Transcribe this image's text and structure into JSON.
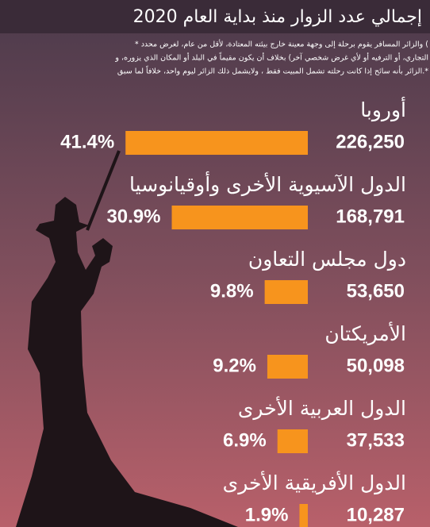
{
  "chart_data": {
    "type": "bar",
    "title": "إجمالي عدد الزوار منذ بداية العام 2020",
    "note_lines": [
      "* والزائر المسافر يقوم برحلة إلى وجهة معينة خارج بيئته المعتادة، لأقل من عام، لغرض محدد (",
      "التجاري، أو الترفيه أو لأي غرض شخصي آخر) بخلاف أن يكون مقيماً في البلد أو المكان الذي يزوره، و",
      "الزائر بأنه سائح إذا كانت رحلته تشمل المبيت فقط ، ولايشمل ذلك الزائر ليوم واحد، خلافاً لما سبق.*"
    ],
    "categories": [
      "أوروبا",
      "الدول الآسيوية الأخرى وأوقيانوسيا",
      "دول مجلس التعاون",
      "الأمريكتان",
      "الدول العربية الأخرى",
      "الدول الأفريقية الأخرى"
    ],
    "series": [
      {
        "name": "visitors",
        "values": [
          226250,
          168791,
          53650,
          50098,
          37533,
          10287
        ],
        "value_labels": [
          "226,250",
          "168,791",
          "53,650",
          "50,098",
          "37,533",
          "10,287"
        ]
      },
      {
        "name": "share",
        "color": "#f7941d",
        "values": [
          41.4,
          30.9,
          9.8,
          9.2,
          6.9,
          1.9
        ],
        "value_labels": [
          "41.4%",
          "30.9%",
          "9.8%",
          "9.2%",
          "6.9%",
          "1.9%"
        ]
      }
    ]
  }
}
